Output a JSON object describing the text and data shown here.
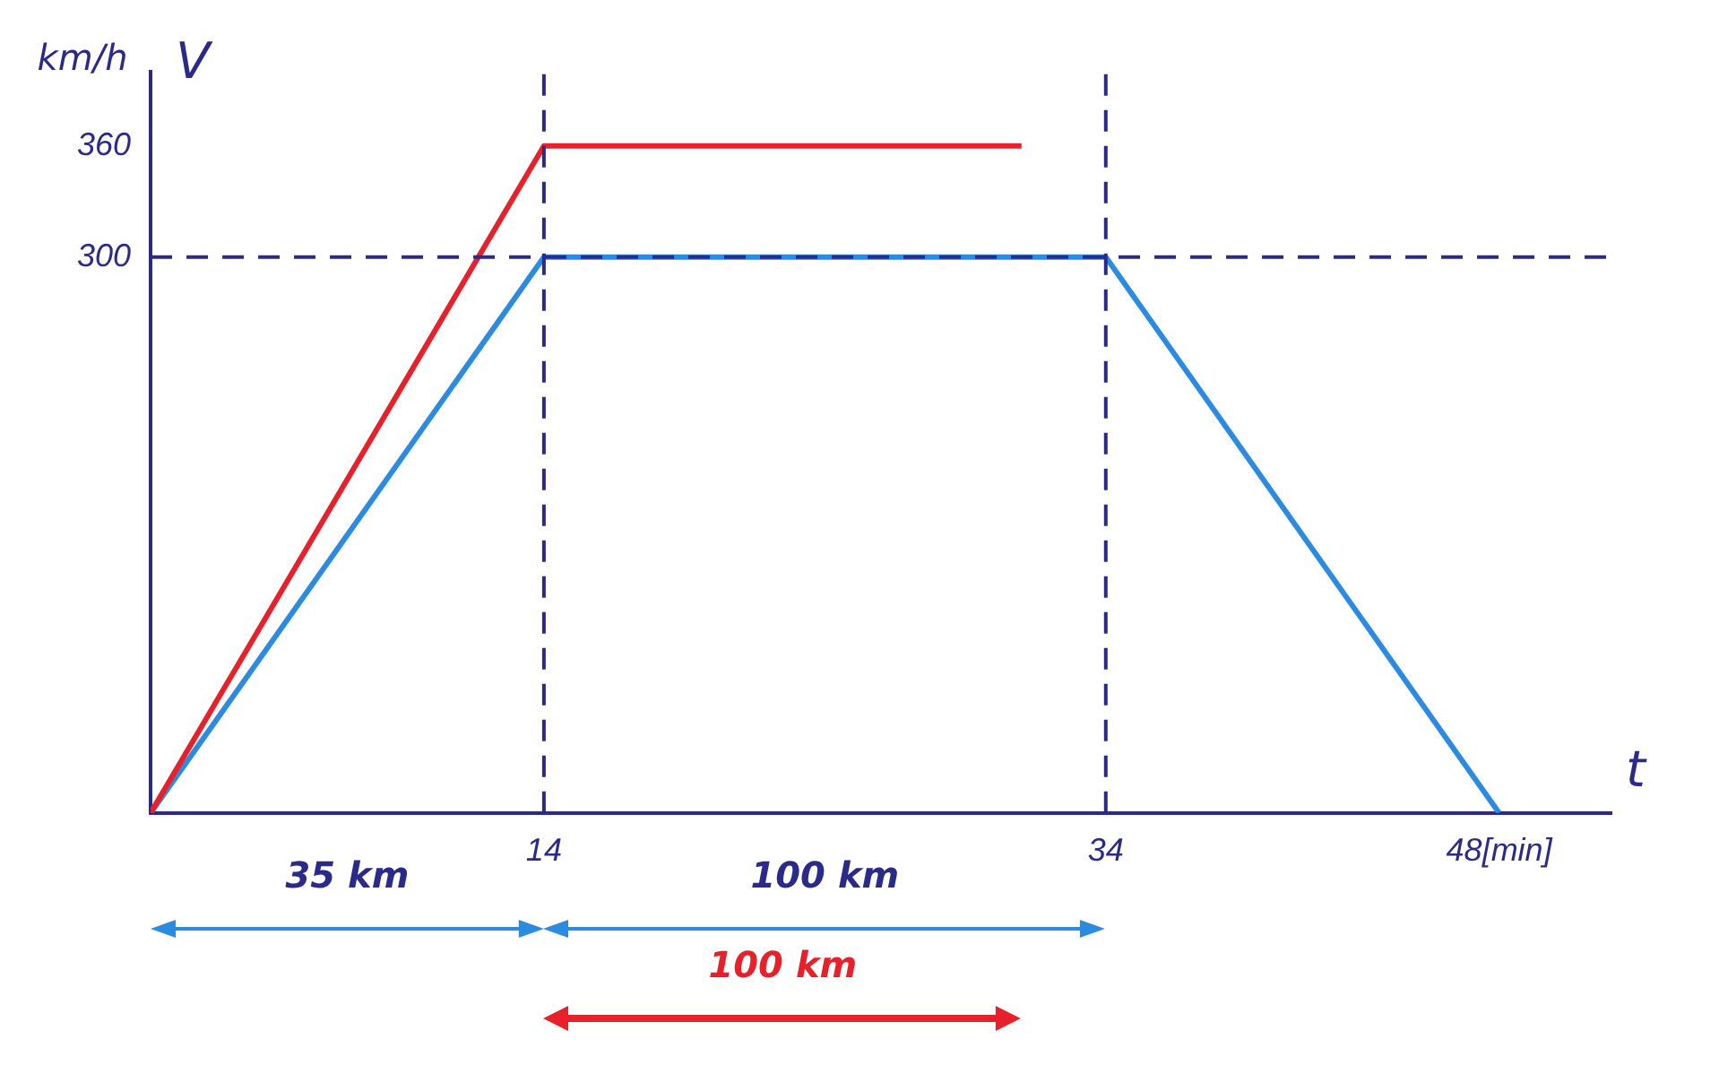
{
  "chart_data": {
    "type": "line",
    "xlabel": "t",
    "ylabel": "V",
    "xlim": [
      0,
      52
    ],
    "ylim": [
      0,
      400
    ],
    "xticks": [
      14,
      34,
      {
        "value": 48,
        "label": "48[min]"
      }
    ],
    "yticks": [
      300,
      360
    ],
    "series": [
      {
        "color": "#e8202a",
        "x": [
          0,
          14,
          31
        ],
        "values": [
          0,
          360,
          360
        ]
      },
      {
        "color": "#2a8be0",
        "x": [
          0,
          14,
          34,
          48
        ],
        "values": [
          0,
          300,
          300,
          0
        ]
      }
    ],
    "ref_lines": [
      {
        "axis": "y",
        "value": 300,
        "color": "#2a2a8a",
        "line_style": "dashed"
      },
      {
        "axis": "x",
        "value": 14,
        "color": "#2a2a8a",
        "line_style": "dashed"
      },
      {
        "axis": "x",
        "value": 34,
        "color": "#2a2a8a",
        "line_style": "dashed"
      }
    ],
    "annotations": [
      "km/h",
      "35 km",
      "100 km",
      "100 km"
    ],
    "grid": false,
    "legend": false,
    "marker": "none",
    "line_style": "solid"
  }
}
